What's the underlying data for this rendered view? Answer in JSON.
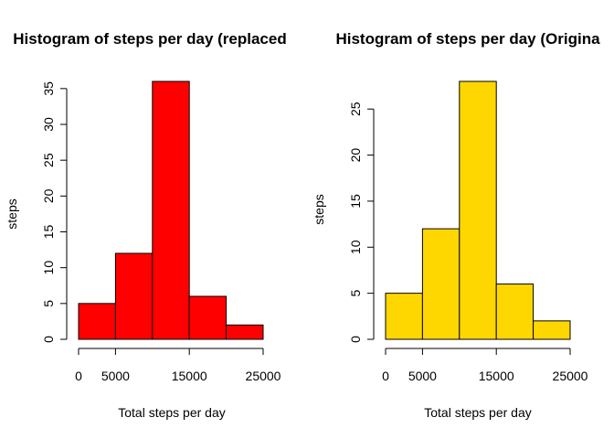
{
  "chart_data": [
    {
      "type": "bar",
      "title": "Histogram of steps per day (replaced",
      "xlabel": "Total steps per day",
      "ylabel": "steps",
      "bins": [
        [
          0,
          5000
        ],
        [
          5000,
          10000
        ],
        [
          10000,
          15000
        ],
        [
          15000,
          20000
        ],
        [
          20000,
          25000
        ]
      ],
      "values": [
        5,
        12,
        36,
        6,
        2
      ],
      "xticks": [
        0,
        5000,
        15000,
        25000
      ],
      "yticks": [
        0,
        5,
        10,
        15,
        20,
        25,
        30,
        35
      ],
      "xlim": [
        0,
        25000
      ],
      "ylim": [
        0,
        36
      ],
      "fill_color": "#ff0000",
      "border_color": "#000000",
      "grid": false
    },
    {
      "type": "bar",
      "title": "Histogram of steps per day (Origina",
      "xlabel": "Total steps per day",
      "ylabel": "steps",
      "bins": [
        [
          0,
          5000
        ],
        [
          5000,
          10000
        ],
        [
          10000,
          15000
        ],
        [
          15000,
          20000
        ],
        [
          20000,
          25000
        ]
      ],
      "values": [
        5,
        12,
        28,
        6,
        2
      ],
      "xticks": [
        0,
        5000,
        15000,
        25000
      ],
      "yticks": [
        0,
        5,
        10,
        15,
        20,
        25
      ],
      "xlim": [
        0,
        25000
      ],
      "ylim": [
        0,
        28
      ],
      "fill_color": "#ffd700",
      "border_color": "#000000",
      "grid": false
    }
  ]
}
